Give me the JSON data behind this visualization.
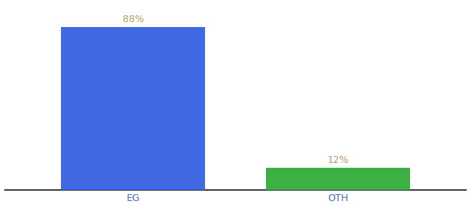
{
  "categories": [
    "EG",
    "OTH"
  ],
  "values": [
    88,
    12
  ],
  "bar_colors": [
    "#4169e1",
    "#3cb043"
  ],
  "label_texts": [
    "88%",
    "12%"
  ],
  "background_color": "#ffffff",
  "axis_line_color": "#000000",
  "label_color": "#b8996a",
  "tick_color": "#4a6abf",
  "ylim": [
    0,
    100
  ],
  "bar_width": 0.28,
  "x_positions": [
    0.25,
    0.65
  ],
  "xlim": [
    0.0,
    0.9
  ]
}
